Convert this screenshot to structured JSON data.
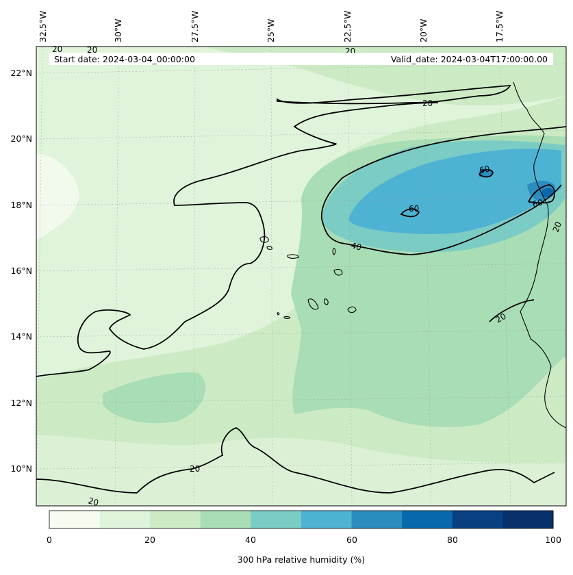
{
  "map": {
    "start_date": "Start date: 2024-03-04_00:00:00",
    "valid_date": "Valid_date: 2024-03-04T17:00:00.00",
    "colorbar_label": "300 hPa relative humidity (%)",
    "lon_labels": [
      "32.5°W",
      "30°W",
      "27.5°W",
      "25°W",
      "22.5°W",
      "20°W",
      "17.5°W"
    ],
    "lat_labels": [
      "22°N",
      "20°N",
      "18°N",
      "16°N",
      "14°N",
      "12°N",
      "10°N"
    ],
    "colorbar_ticks": [
      "0",
      "20",
      "40",
      "60",
      "80",
      "100"
    ],
    "contour_labels": {
      "c20_top_a": "20",
      "c20_top_b": "20",
      "c20_top_c": "20",
      "c20_mid": "20",
      "c20_south": "20",
      "c20_bottom_left": "20",
      "c20_right_a": "20",
      "c20_right_b": "20",
      "c40": "40",
      "c60_a": "60",
      "c60_b": "60",
      "c60_c": "60"
    },
    "colors": [
      "#f7fcf0",
      "#e0f3db",
      "#ccebc5",
      "#a8ddb5",
      "#7bccc4",
      "#4eb3d3",
      "#2b8cbe",
      "#0868ac",
      "#084081",
      "#08306b"
    ],
    "levels": [
      0,
      10,
      20,
      30,
      40,
      50,
      60,
      70,
      80,
      90,
      100
    ]
  }
}
